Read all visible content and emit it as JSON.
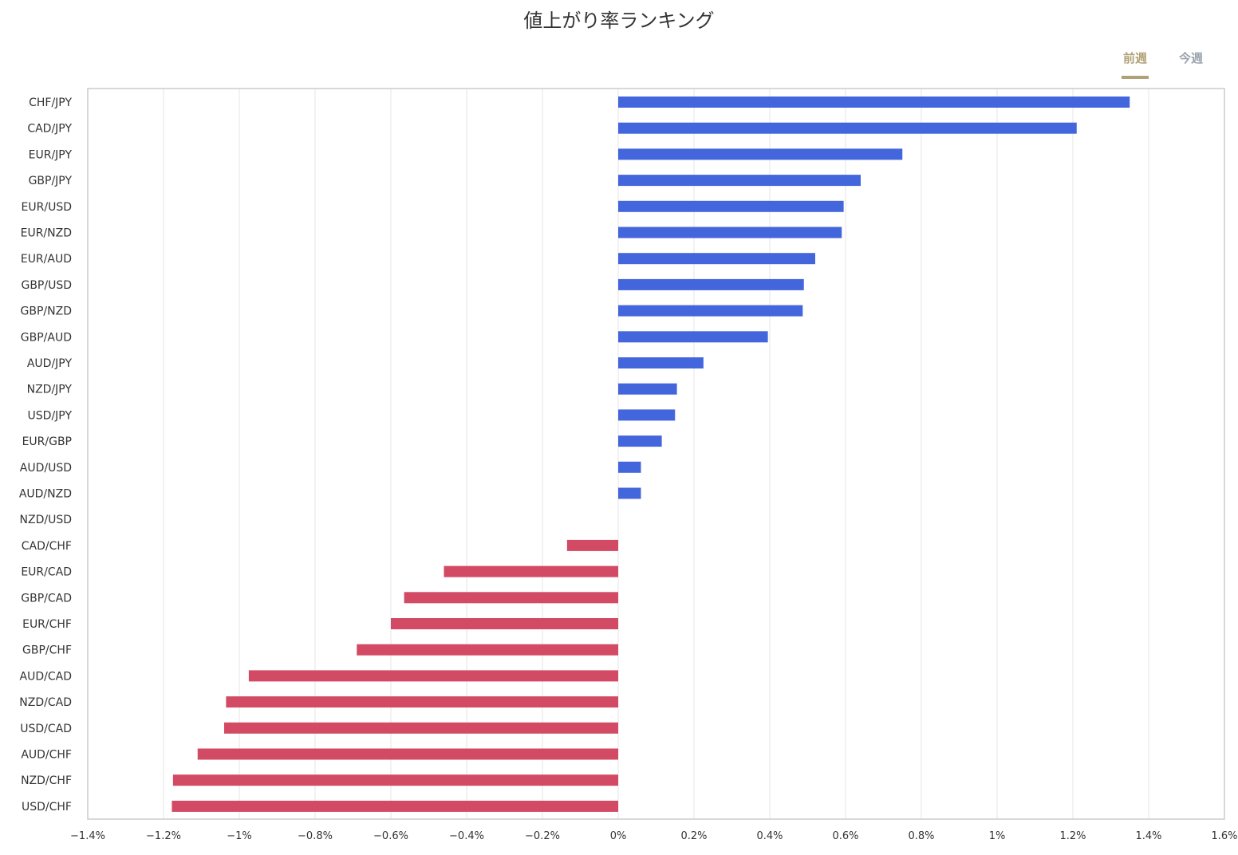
{
  "title": "値上がり率ランキング",
  "tabs": [
    {
      "label": "前週",
      "active": true
    },
    {
      "label": "今週",
      "active": false
    }
  ],
  "colors": {
    "positive": "#4466dd",
    "negative": "#d24a64",
    "grid": "#e6e6e6",
    "frame": "#cccccc",
    "tab_active": "#b1a177",
    "tab_inactive": "#9aa3ad"
  },
  "chart_data": {
    "type": "bar",
    "orientation": "horizontal",
    "categories": [
      "CHF/JPY",
      "CAD/JPY",
      "EUR/JPY",
      "GBP/JPY",
      "EUR/USD",
      "EUR/NZD",
      "EUR/AUD",
      "GBP/USD",
      "GBP/NZD",
      "GBP/AUD",
      "AUD/JPY",
      "NZD/JPY",
      "USD/JPY",
      "EUR/GBP",
      "AUD/USD",
      "AUD/NZD",
      "NZD/USD",
      "CAD/CHF",
      "EUR/CAD",
      "GBP/CAD",
      "EUR/CHF",
      "GBP/CHF",
      "AUD/CAD",
      "NZD/CAD",
      "USD/CAD",
      "AUD/CHF",
      "NZD/CHF",
      "USD/CHF"
    ],
    "values": [
      1.35,
      1.21,
      0.75,
      0.64,
      0.595,
      0.59,
      0.52,
      0.49,
      0.487,
      0.395,
      0.225,
      0.155,
      0.15,
      0.115,
      0.06,
      0.06,
      0.0,
      -0.135,
      -0.46,
      -0.565,
      -0.6,
      -0.69,
      -0.975,
      -1.035,
      -1.04,
      -1.11,
      -1.175,
      -1.178
    ],
    "xlim": [
      -1.4,
      1.6
    ],
    "xticks": [
      {
        "value": -1.4,
        "label": "−1.4%"
      },
      {
        "value": -1.2,
        "label": "−1.2%"
      },
      {
        "value": -1.0,
        "label": "−1%"
      },
      {
        "value": -0.8,
        "label": "−0.8%"
      },
      {
        "value": -0.6,
        "label": "−0.6%"
      },
      {
        "value": -0.4,
        "label": "−0.4%"
      },
      {
        "value": -0.2,
        "label": "−0.2%"
      },
      {
        "value": 0,
        "label": "0%"
      },
      {
        "value": 0.2,
        "label": "0.2%"
      },
      {
        "value": 0.4,
        "label": "0.4%"
      },
      {
        "value": 0.6,
        "label": "0.6%"
      },
      {
        "value": 0.8,
        "label": "0.8%"
      },
      {
        "value": 1.0,
        "label": "1%"
      },
      {
        "value": 1.2,
        "label": "1.2%"
      },
      {
        "value": 1.4,
        "label": "1.4%"
      },
      {
        "value": 1.6,
        "label": "1.6%"
      }
    ],
    "grid": true,
    "legend": "none"
  }
}
